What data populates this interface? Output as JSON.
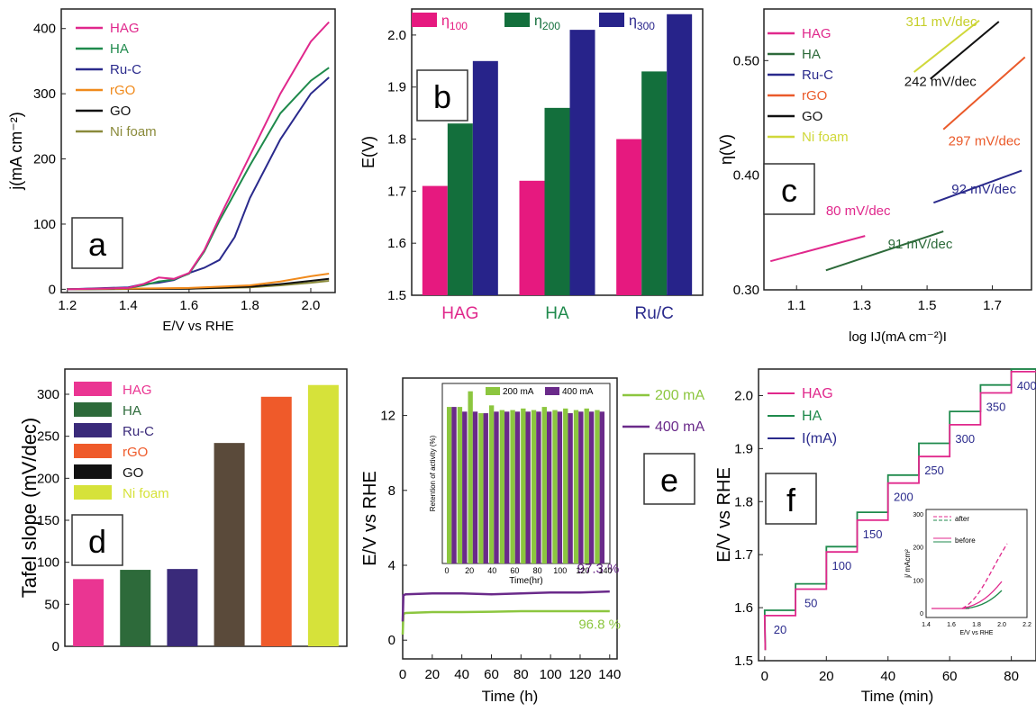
{
  "colors": {
    "HAG": "#e0288c",
    "HA": "#1f8a4c",
    "RuC": "#2a2a8c",
    "rGO": "#f08a1c",
    "GO": "#111111",
    "Ni": "#8a8a3a",
    "barPink": "#e6197f",
    "barGreen": "#136f3c",
    "barNavy": "#27238a",
    "d_HAG": "#ea3592",
    "d_HA": "#2d6a3a",
    "d_RuC": "#3a2a7a",
    "d_rGO": "#ef5a2a",
    "d_GO": "#5a4a3a",
    "d_Ni": "#d6e23a",
    "e200": "#8cc63f",
    "e400": "#6a2a8a",
    "c_rGO": "#ea5a2a",
    "c_Ni": "#d0d83a",
    "c_GO": "#111111"
  },
  "chart_data": [
    {
      "id": "a",
      "type": "line",
      "letter": "a",
      "xlabel": "E/V vs  RHE",
      "ylabel": "j(mA cm⁻²)",
      "xlim": [
        1.18,
        2.08
      ],
      "ylim": [
        -5,
        430
      ],
      "xticks": [
        "1.2",
        "1.4",
        "1.6",
        "1.8",
        "2.0"
      ],
      "xtickvals": [
        1.2,
        1.4,
        1.6,
        1.8,
        2.0
      ],
      "yticks": [
        "0",
        "100",
        "200",
        "300",
        "400"
      ],
      "ytickvals": [
        0,
        100,
        200,
        300,
        400
      ],
      "series": [
        {
          "name": "HAG",
          "color": "#e0288c",
          "x": [
            1.2,
            1.4,
            1.45,
            1.5,
            1.55,
            1.6,
            1.65,
            1.7,
            1.8,
            1.9,
            2.0,
            2.06
          ],
          "y": [
            0,
            2,
            8,
            18,
            16,
            25,
            60,
            110,
            205,
            300,
            380,
            410
          ]
        },
        {
          "name": "HA",
          "color": "#1f8a4c",
          "x": [
            1.2,
            1.4,
            1.45,
            1.5,
            1.55,
            1.6,
            1.65,
            1.7,
            1.8,
            1.9,
            2.0,
            2.06
          ],
          "y": [
            0,
            2,
            6,
            12,
            15,
            24,
            58,
            105,
            190,
            270,
            320,
            340
          ]
        },
        {
          "name": "Ru-C",
          "color": "#2a2a8c",
          "x": [
            1.2,
            1.4,
            1.45,
            1.5,
            1.55,
            1.6,
            1.65,
            1.7,
            1.75,
            1.8,
            1.9,
            2.0,
            2.06
          ],
          "y": [
            0,
            3,
            8,
            10,
            14,
            25,
            33,
            45,
            80,
            140,
            230,
            300,
            325
          ]
        },
        {
          "name": "rGO",
          "color": "#f08a1c",
          "x": [
            1.2,
            1.6,
            1.8,
            1.9,
            2.0,
            2.06
          ],
          "y": [
            0,
            2,
            6,
            12,
            20,
            24
          ]
        },
        {
          "name": "GO",
          "color": "#111111",
          "x": [
            1.2,
            1.6,
            1.8,
            1.9,
            2.0,
            2.06
          ],
          "y": [
            0,
            1,
            4,
            8,
            13,
            16
          ]
        },
        {
          "name": "Ni foam",
          "color": "#8a8a3a",
          "x": [
            1.2,
            1.6,
            1.8,
            1.9,
            2.0,
            2.06
          ],
          "y": [
            0,
            1,
            3,
            6,
            10,
            13
          ]
        }
      ]
    },
    {
      "id": "b",
      "type": "bar",
      "letter": "b",
      "ylabel": "E(V)",
      "ylim": [
        1.5,
        2.05
      ],
      "yticks": [
        "1.5",
        "1.6",
        "1.7",
        "1.8",
        "1.9",
        "2.0"
      ],
      "ytickvals": [
        1.5,
        1.6,
        1.7,
        1.8,
        1.9,
        2.0
      ],
      "categories": [
        "HAG",
        "HA",
        "Ru/C"
      ],
      "category_colors": [
        "#e0288c",
        "#1f8a4c",
        "#2a2a8c"
      ],
      "series": [
        {
          "name": "η",
          "sub": "100",
          "color": "#e6197f",
          "values": [
            1.71,
            1.72,
            1.8
          ]
        },
        {
          "name": "η",
          "sub": "200",
          "color": "#136f3c",
          "values": [
            1.83,
            1.86,
            1.93
          ]
        },
        {
          "name": "η",
          "sub": "300",
          "color": "#27238a",
          "values": [
            1.95,
            2.01,
            2.04
          ]
        }
      ]
    },
    {
      "id": "c",
      "type": "line",
      "letter": "c",
      "xlabel": "log IJ(mA cm⁻²)I",
      "ylabel": "η(V)",
      "xlim": [
        1.0,
        1.82
      ],
      "ylim": [
        0.3,
        0.545
      ],
      "xticks": [
        "1.1",
        "1.3",
        "1.5",
        "1.7"
      ],
      "xtickvals": [
        1.1,
        1.3,
        1.5,
        1.7
      ],
      "yticks": [
        "0.30",
        "0.40",
        "0.50"
      ],
      "ytickvals": [
        0.3,
        0.4,
        0.5
      ],
      "series": [
        {
          "name": "HAG",
          "color": "#e0288c",
          "x": [
            1.02,
            1.31
          ],
          "y": [
            0.325,
            0.347
          ]
        },
        {
          "name": "HA",
          "color": "#2d6a3a",
          "x": [
            1.19,
            1.55
          ],
          "y": [
            0.317,
            0.351
          ]
        },
        {
          "name": "Ru-C",
          "color": "#2a2a8c",
          "x": [
            1.52,
            1.79
          ],
          "y": [
            0.376,
            0.404
          ]
        },
        {
          "name": "rGO",
          "color": "#ea5a2a",
          "x": [
            1.55,
            1.8
          ],
          "y": [
            0.44,
            0.503
          ]
        },
        {
          "name": "GO",
          "color": "#111111",
          "x": [
            1.51,
            1.72
          ],
          "y": [
            0.484,
            0.534
          ]
        },
        {
          "name": "Ni foam",
          "color": "#d0d83a",
          "x": [
            1.46,
            1.66
          ],
          "y": [
            0.49,
            0.535
          ]
        }
      ],
      "annotations": [
        {
          "text": "311 mV/dec",
          "color": "#c6cf2a",
          "x": 1.435,
          "y": 0.53
        },
        {
          "text": "242 mV/dec",
          "color": "#111111",
          "x": 1.43,
          "y": 0.478
        },
        {
          "text": "297 mV/dec",
          "color": "#ea5a2a",
          "x": 1.565,
          "y": 0.426
        },
        {
          "text": "92 mV/dec",
          "color": "#2a2a8c",
          "x": 1.575,
          "y": 0.384
        },
        {
          "text": "80 mV/dec",
          "color": "#e0288c",
          "x": 1.19,
          "y": 0.365
        },
        {
          "text": "91 mV/dec",
          "color": "#2d6a3a",
          "x": 1.38,
          "y": 0.336
        }
      ]
    },
    {
      "id": "d",
      "type": "bar",
      "letter": "d",
      "ylabel": "Tafel slope (mV/dec)",
      "ylim": [
        0,
        330
      ],
      "yticks": [
        "0",
        "50",
        "100",
        "150",
        "200",
        "250",
        "300"
      ],
      "ytickvals": [
        0,
        50,
        100,
        150,
        200,
        250,
        300
      ],
      "categories": [
        "HAG",
        "HA",
        "Ru-C",
        "GO",
        "rGO",
        "Ni foam"
      ],
      "values": [
        80,
        91,
        92,
        242,
        297,
        311
      ],
      "bar_colors": [
        "#ea3592",
        "#2d6a3a",
        "#3a2a7a",
        "#5a4a3a",
        "#ef5a2a",
        "#d6e23a"
      ],
      "legend": [
        {
          "name": "HAG",
          "color": "#ea3592"
        },
        {
          "name": "HA",
          "color": "#2d6a3a"
        },
        {
          "name": "Ru-C",
          "color": "#3a2a7a"
        },
        {
          "name": "rGO",
          "color": "#ef5a2a"
        },
        {
          "name": "GO",
          "color": "#111111"
        },
        {
          "name": "Ni foam",
          "color": "#d6e23a"
        }
      ]
    },
    {
      "id": "e",
      "type": "line",
      "letter": "e",
      "xlabel": "Time (h)",
      "ylabel": "E/V vs RHE",
      "xlim": [
        0,
        145
      ],
      "ylim": [
        -1,
        14
      ],
      "xticks": [
        "0",
        "20",
        "40",
        "60",
        "80",
        "100",
        "120",
        "140"
      ],
      "xtickvals": [
        0,
        20,
        40,
        60,
        80,
        100,
        120,
        140
      ],
      "yticks": [
        "0",
        "4",
        "8",
        "12"
      ],
      "ytickvals": [
        0,
        4,
        8,
        12
      ],
      "series": [
        {
          "name": "200 mA",
          "color": "#8cc63f",
          "x": [
            0,
            0.5,
            2,
            20,
            40,
            60,
            80,
            100,
            120,
            140
          ],
          "y": [
            0.3,
            1.4,
            1.45,
            1.5,
            1.5,
            1.52,
            1.55,
            1.55,
            1.55,
            1.55
          ]
        },
        {
          "name": "400 mA",
          "color": "#6a2a8a",
          "x": [
            0,
            0.5,
            2,
            20,
            40,
            60,
            80,
            100,
            120,
            140
          ],
          "y": [
            1.0,
            2.4,
            2.45,
            2.5,
            2.5,
            2.45,
            2.5,
            2.55,
            2.55,
            2.6
          ]
        }
      ],
      "annotations": [
        {
          "text": "97.3 %",
          "color": "#6a2a8a",
          "x": 118,
          "y": 3.6
        },
        {
          "text": "96.8 %",
          "color": "#8cc63f",
          "x": 119,
          "y": 0.6
        }
      ],
      "inset": {
        "type": "bar",
        "xlabel": "Time(hr)",
        "ylabel": "Retention of activity (%)",
        "categories": [
          "0",
          "10",
          "20",
          "30",
          "40",
          "50",
          "60",
          "70",
          "80",
          "90",
          "100",
          "110",
          "120",
          "130",
          "140"
        ],
        "xticks": [
          "0",
          "20",
          "40",
          "60",
          "80",
          "100",
          "120",
          "140"
        ],
        "series": [
          {
            "name": "200 mA",
            "color": "#8cc63f",
            "values": [
              100,
              100,
              110,
              96,
              101,
              98,
              98,
              99,
              98,
              100,
              98,
              99,
              98,
              99,
              98
            ]
          },
          {
            "name": "400 mA",
            "color": "#6a2a8a",
            "values": [
              100,
              97,
              97,
              96,
              97,
              97,
              97,
              97,
              97,
              97,
              97,
              96,
              97,
              97,
              97
            ]
          }
        ]
      }
    },
    {
      "id": "f",
      "type": "line",
      "letter": "f",
      "xlabel": "Time (min)",
      "ylabel": "E/V vs RHE",
      "xlim": [
        -2,
        88
      ],
      "ylim": [
        1.5,
        2.05
      ],
      "xticks": [
        "0",
        "20",
        "40",
        "60",
        "80"
      ],
      "xtickvals": [
        0,
        20,
        40,
        60,
        80
      ],
      "yticks": [
        "1.5",
        "1.6",
        "1.7",
        "1.8",
        "1.9",
        "2.0"
      ],
      "ytickvals": [
        1.5,
        1.6,
        1.7,
        1.8,
        1.9,
        2.0
      ],
      "series": [
        {
          "name": "HAG",
          "color": "#e0288c",
          "steps": [
            1.585,
            1.635,
            1.705,
            1.765,
            1.835,
            1.885,
            1.945,
            2.005,
            2.045
          ]
        },
        {
          "name": "HA",
          "color": "#1f8a4c",
          "steps": [
            1.595,
            1.645,
            1.715,
            1.78,
            1.85,
            1.91,
            1.97,
            2.02,
            2.05
          ]
        },
        {
          "name": "I(mA)",
          "color": "#2a2a8c",
          "steps": []
        }
      ],
      "step_labels": [
        "20",
        "50",
        "100",
        "150",
        "200",
        "250",
        "300",
        "350",
        "400"
      ],
      "inset": {
        "xlabel": "E/V vs RHE",
        "ylabel": "j/ mAcm²",
        "xticks": [
          "1.4",
          "1.6",
          "1.8",
          "2.0",
          "2.2"
        ],
        "yticks": [
          "0",
          "100",
          "200",
          "300"
        ],
        "legend": [
          "after",
          "before"
        ]
      }
    }
  ]
}
